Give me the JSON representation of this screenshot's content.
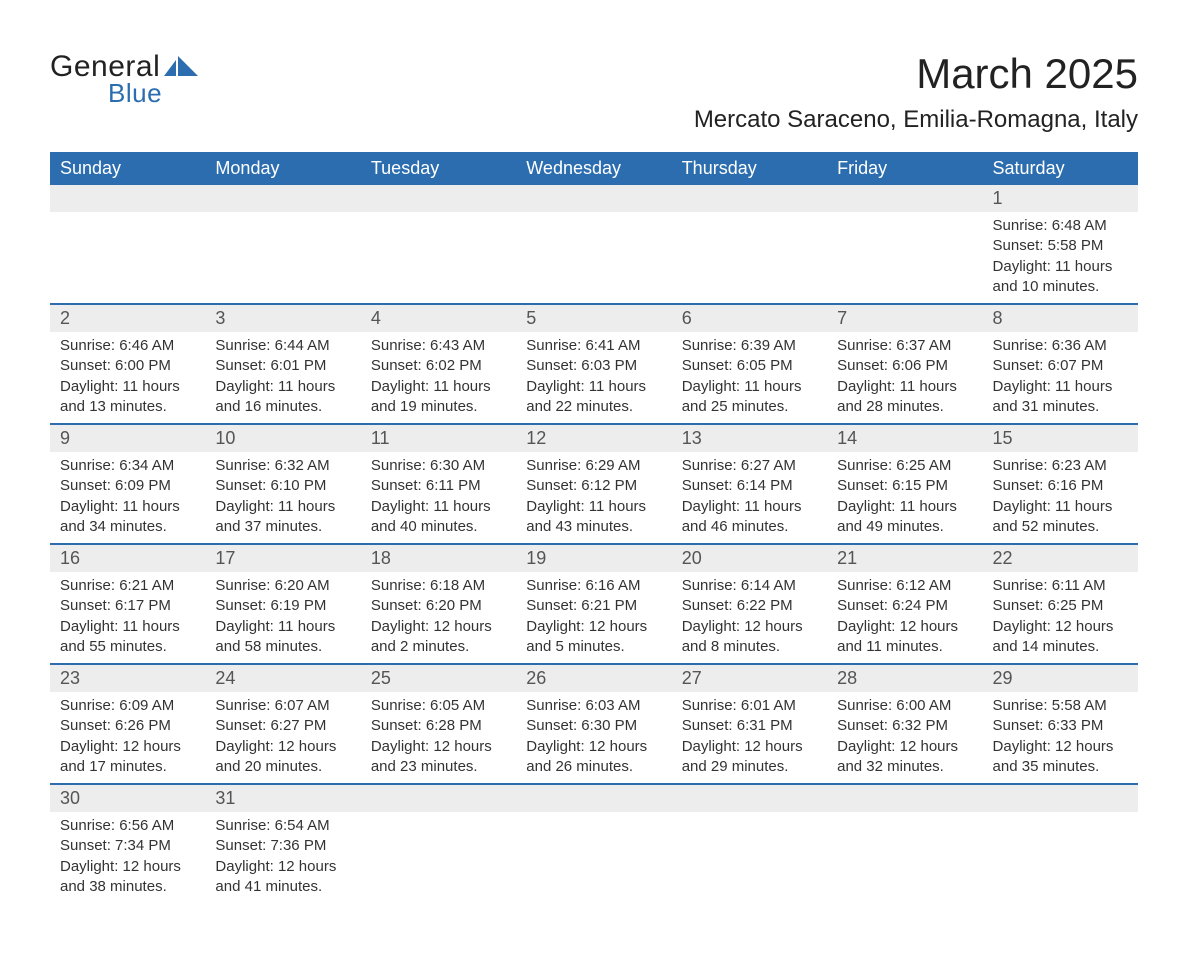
{
  "brand": {
    "name_top": "General",
    "name_bottom": "Blue",
    "accent_color": "#2b6daf"
  },
  "title": "March 2025",
  "location": "Mercato Saraceno, Emilia-Romagna, Italy",
  "weekdays": [
    "Sunday",
    "Monday",
    "Tuesday",
    "Wednesday",
    "Thursday",
    "Friday",
    "Saturday"
  ],
  "style": {
    "header_bg": "#2b6daf",
    "header_fg": "#ffffff",
    "daynum_bg": "#ededed",
    "daynum_fg": "#555555",
    "body_fg": "#333333",
    "row_border": "#2b6daf",
    "page_bg": "#ffffff",
    "title_fontsize": 42,
    "location_fontsize": 24,
    "weekday_fontsize": 18,
    "daynum_fontsize": 18,
    "cell_fontsize": 15
  },
  "weeks": [
    [
      {
        "day": "",
        "sunrise": "",
        "sunset": "",
        "daylight": ""
      },
      {
        "day": "",
        "sunrise": "",
        "sunset": "",
        "daylight": ""
      },
      {
        "day": "",
        "sunrise": "",
        "sunset": "",
        "daylight": ""
      },
      {
        "day": "",
        "sunrise": "",
        "sunset": "",
        "daylight": ""
      },
      {
        "day": "",
        "sunrise": "",
        "sunset": "",
        "daylight": ""
      },
      {
        "day": "",
        "sunrise": "",
        "sunset": "",
        "daylight": ""
      },
      {
        "day": "1",
        "sunrise": "Sunrise: 6:48 AM",
        "sunset": "Sunset: 5:58 PM",
        "daylight": "Daylight: 11 hours and 10 minutes."
      }
    ],
    [
      {
        "day": "2",
        "sunrise": "Sunrise: 6:46 AM",
        "sunset": "Sunset: 6:00 PM",
        "daylight": "Daylight: 11 hours and 13 minutes."
      },
      {
        "day": "3",
        "sunrise": "Sunrise: 6:44 AM",
        "sunset": "Sunset: 6:01 PM",
        "daylight": "Daylight: 11 hours and 16 minutes."
      },
      {
        "day": "4",
        "sunrise": "Sunrise: 6:43 AM",
        "sunset": "Sunset: 6:02 PM",
        "daylight": "Daylight: 11 hours and 19 minutes."
      },
      {
        "day": "5",
        "sunrise": "Sunrise: 6:41 AM",
        "sunset": "Sunset: 6:03 PM",
        "daylight": "Daylight: 11 hours and 22 minutes."
      },
      {
        "day": "6",
        "sunrise": "Sunrise: 6:39 AM",
        "sunset": "Sunset: 6:05 PM",
        "daylight": "Daylight: 11 hours and 25 minutes."
      },
      {
        "day": "7",
        "sunrise": "Sunrise: 6:37 AM",
        "sunset": "Sunset: 6:06 PM",
        "daylight": "Daylight: 11 hours and 28 minutes."
      },
      {
        "day": "8",
        "sunrise": "Sunrise: 6:36 AM",
        "sunset": "Sunset: 6:07 PM",
        "daylight": "Daylight: 11 hours and 31 minutes."
      }
    ],
    [
      {
        "day": "9",
        "sunrise": "Sunrise: 6:34 AM",
        "sunset": "Sunset: 6:09 PM",
        "daylight": "Daylight: 11 hours and 34 minutes."
      },
      {
        "day": "10",
        "sunrise": "Sunrise: 6:32 AM",
        "sunset": "Sunset: 6:10 PM",
        "daylight": "Daylight: 11 hours and 37 minutes."
      },
      {
        "day": "11",
        "sunrise": "Sunrise: 6:30 AM",
        "sunset": "Sunset: 6:11 PM",
        "daylight": "Daylight: 11 hours and 40 minutes."
      },
      {
        "day": "12",
        "sunrise": "Sunrise: 6:29 AM",
        "sunset": "Sunset: 6:12 PM",
        "daylight": "Daylight: 11 hours and 43 minutes."
      },
      {
        "day": "13",
        "sunrise": "Sunrise: 6:27 AM",
        "sunset": "Sunset: 6:14 PM",
        "daylight": "Daylight: 11 hours and 46 minutes."
      },
      {
        "day": "14",
        "sunrise": "Sunrise: 6:25 AM",
        "sunset": "Sunset: 6:15 PM",
        "daylight": "Daylight: 11 hours and 49 minutes."
      },
      {
        "day": "15",
        "sunrise": "Sunrise: 6:23 AM",
        "sunset": "Sunset: 6:16 PM",
        "daylight": "Daylight: 11 hours and 52 minutes."
      }
    ],
    [
      {
        "day": "16",
        "sunrise": "Sunrise: 6:21 AM",
        "sunset": "Sunset: 6:17 PM",
        "daylight": "Daylight: 11 hours and 55 minutes."
      },
      {
        "day": "17",
        "sunrise": "Sunrise: 6:20 AM",
        "sunset": "Sunset: 6:19 PM",
        "daylight": "Daylight: 11 hours and 58 minutes."
      },
      {
        "day": "18",
        "sunrise": "Sunrise: 6:18 AM",
        "sunset": "Sunset: 6:20 PM",
        "daylight": "Daylight: 12 hours and 2 minutes."
      },
      {
        "day": "19",
        "sunrise": "Sunrise: 6:16 AM",
        "sunset": "Sunset: 6:21 PM",
        "daylight": "Daylight: 12 hours and 5 minutes."
      },
      {
        "day": "20",
        "sunrise": "Sunrise: 6:14 AM",
        "sunset": "Sunset: 6:22 PM",
        "daylight": "Daylight: 12 hours and 8 minutes."
      },
      {
        "day": "21",
        "sunrise": "Sunrise: 6:12 AM",
        "sunset": "Sunset: 6:24 PM",
        "daylight": "Daylight: 12 hours and 11 minutes."
      },
      {
        "day": "22",
        "sunrise": "Sunrise: 6:11 AM",
        "sunset": "Sunset: 6:25 PM",
        "daylight": "Daylight: 12 hours and 14 minutes."
      }
    ],
    [
      {
        "day": "23",
        "sunrise": "Sunrise: 6:09 AM",
        "sunset": "Sunset: 6:26 PM",
        "daylight": "Daylight: 12 hours and 17 minutes."
      },
      {
        "day": "24",
        "sunrise": "Sunrise: 6:07 AM",
        "sunset": "Sunset: 6:27 PM",
        "daylight": "Daylight: 12 hours and 20 minutes."
      },
      {
        "day": "25",
        "sunrise": "Sunrise: 6:05 AM",
        "sunset": "Sunset: 6:28 PM",
        "daylight": "Daylight: 12 hours and 23 minutes."
      },
      {
        "day": "26",
        "sunrise": "Sunrise: 6:03 AM",
        "sunset": "Sunset: 6:30 PM",
        "daylight": "Daylight: 12 hours and 26 minutes."
      },
      {
        "day": "27",
        "sunrise": "Sunrise: 6:01 AM",
        "sunset": "Sunset: 6:31 PM",
        "daylight": "Daylight: 12 hours and 29 minutes."
      },
      {
        "day": "28",
        "sunrise": "Sunrise: 6:00 AM",
        "sunset": "Sunset: 6:32 PM",
        "daylight": "Daylight: 12 hours and 32 minutes."
      },
      {
        "day": "29",
        "sunrise": "Sunrise: 5:58 AM",
        "sunset": "Sunset: 6:33 PM",
        "daylight": "Daylight: 12 hours and 35 minutes."
      }
    ],
    [
      {
        "day": "30",
        "sunrise": "Sunrise: 6:56 AM",
        "sunset": "Sunset: 7:34 PM",
        "daylight": "Daylight: 12 hours and 38 minutes."
      },
      {
        "day": "31",
        "sunrise": "Sunrise: 6:54 AM",
        "sunset": "Sunset: 7:36 PM",
        "daylight": "Daylight: 12 hours and 41 minutes."
      },
      {
        "day": "",
        "sunrise": "",
        "sunset": "",
        "daylight": ""
      },
      {
        "day": "",
        "sunrise": "",
        "sunset": "",
        "daylight": ""
      },
      {
        "day": "",
        "sunrise": "",
        "sunset": "",
        "daylight": ""
      },
      {
        "day": "",
        "sunrise": "",
        "sunset": "",
        "daylight": ""
      },
      {
        "day": "",
        "sunrise": "",
        "sunset": "",
        "daylight": ""
      }
    ]
  ]
}
